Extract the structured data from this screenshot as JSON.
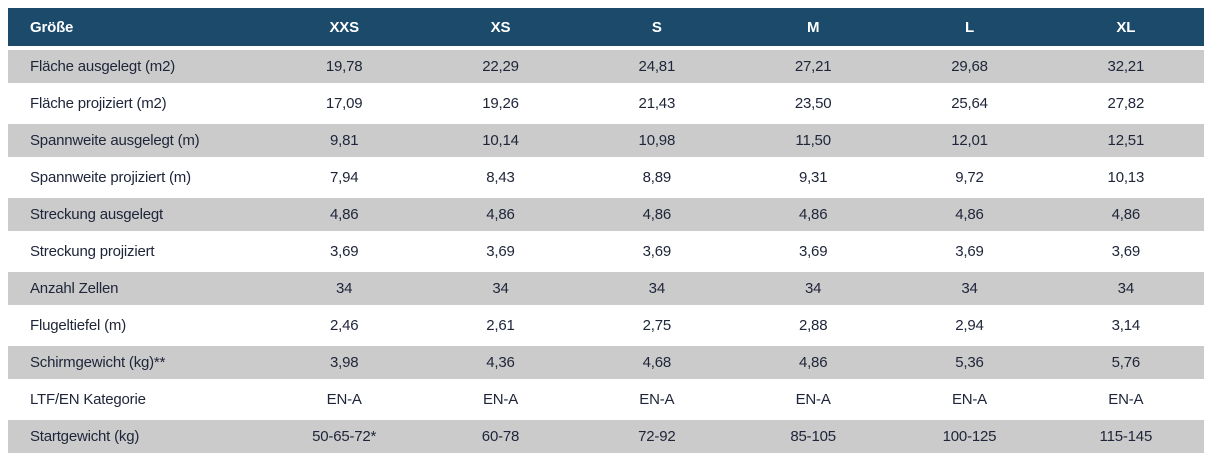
{
  "table": {
    "columns": [
      "Größe",
      "XXS",
      "XS",
      "S",
      "M",
      "L",
      "XL"
    ],
    "rows": [
      {
        "label": "Fläche ausgelegt (m2)",
        "values": [
          "19,78",
          "22,29",
          "24,81",
          "27,21",
          "29,68",
          "32,21"
        ]
      },
      {
        "label": "Fläche projiziert (m2)",
        "values": [
          "17,09",
          "19,26",
          "21,43",
          "23,50",
          "25,64",
          "27,82"
        ]
      },
      {
        "label": "Spannweite ausgelegt (m)",
        "values": [
          "9,81",
          "10,14",
          "10,98",
          "11,50",
          "12,01",
          "12,51"
        ]
      },
      {
        "label": "Spannweite projiziert (m)",
        "values": [
          "7,94",
          "8,43",
          "8,89",
          "9,31",
          "9,72",
          "10,13"
        ]
      },
      {
        "label": "Streckung ausgelegt",
        "values": [
          "4,86",
          "4,86",
          "4,86",
          "4,86",
          "4,86",
          "4,86"
        ]
      },
      {
        "label": "Streckung projiziert",
        "values": [
          "3,69",
          "3,69",
          "3,69",
          "3,69",
          "3,69",
          "3,69"
        ]
      },
      {
        "label": "Anzahl Zellen",
        "values": [
          "34",
          "34",
          "34",
          "34",
          "34",
          "34"
        ]
      },
      {
        "label": "Flugeltiefel (m)",
        "values": [
          "2,46",
          "2,61",
          "2,75",
          "2,88",
          "2,94",
          "3,14"
        ]
      },
      {
        "label": "Schirmgewicht (kg)**",
        "values": [
          "3,98",
          "4,36",
          "4,68",
          "4,86",
          "5,36",
          "5,76"
        ]
      },
      {
        "label": "LTF/EN Kategorie",
        "values": [
          "EN-A",
          "EN-A",
          "EN-A",
          "EN-A",
          "EN-A",
          "EN-A"
        ]
      },
      {
        "label": "Startgewicht (kg)",
        "values": [
          "50-65-72*",
          "60-78",
          "72-92",
          "85-105",
          "100-125",
          "115-145"
        ]
      }
    ]
  },
  "colors": {
    "header_bg": "#1B4A6B",
    "header_text": "#FFFFFF",
    "row_alt_bg": "#CBCBCB",
    "row_bg": "#FFFFFF",
    "body_text": "#20263A"
  }
}
